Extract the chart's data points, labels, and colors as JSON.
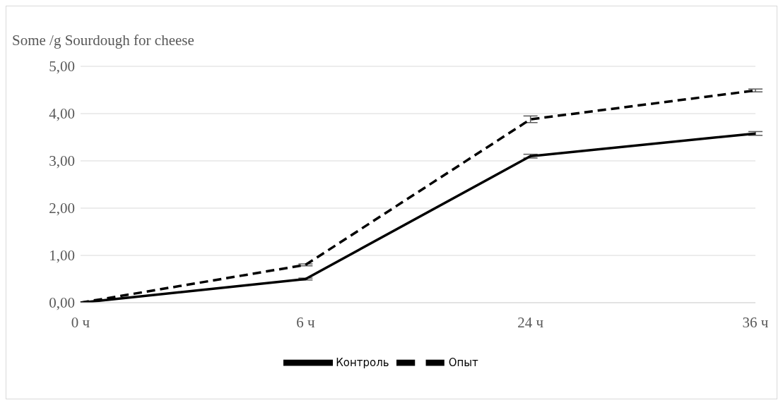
{
  "chart_data": {
    "type": "line",
    "ylabel": "Some /g Sourdough for cheese",
    "categories": [
      "0 ч",
      "6 ч",
      "24 ч",
      "36 ч"
    ],
    "series": [
      {
        "name": "Контроль",
        "color": "#000000",
        "line_style": "solid",
        "values": [
          0,
          0.5,
          3.1,
          3.58
        ],
        "errors": [
          null,
          0.02,
          0.04,
          0.04
        ]
      },
      {
        "name": "Опыт",
        "color": "#000000",
        "line_style": "dashed",
        "values": [
          0,
          0.8,
          3.88,
          4.49
        ],
        "errors": [
          null,
          0.02,
          0.07,
          0.03
        ]
      }
    ],
    "ylim": [
      0,
      5
    ],
    "yticks": [
      {
        "value": 0,
        "label": "0,00"
      },
      {
        "value": 1,
        "label": "1,00"
      },
      {
        "value": 2,
        "label": "2,00"
      },
      {
        "value": 3,
        "label": "3,00"
      },
      {
        "value": 4,
        "label": "4,00"
      },
      {
        "value": 5,
        "label": "5,00"
      }
    ],
    "grid": "y",
    "legend": "bottom",
    "marker": "none"
  }
}
